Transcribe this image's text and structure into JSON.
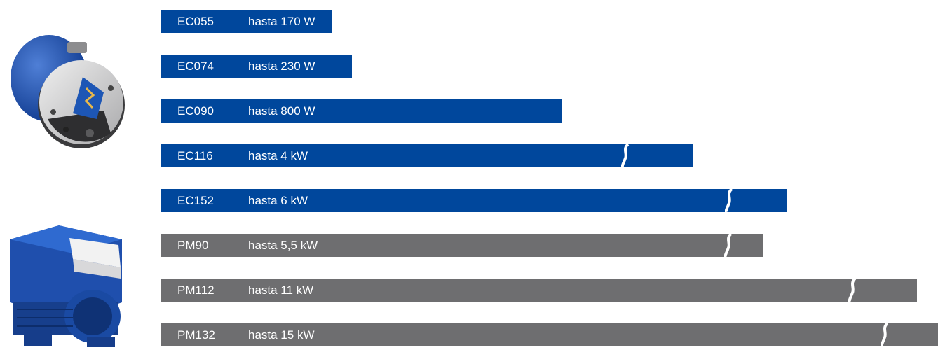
{
  "colors": {
    "ec": "#00479c",
    "pm": "#6e6e70",
    "background": "#ffffff"
  },
  "icons": {
    "ec_motor": "ec-motor-image",
    "pm_motor": "pm-motor-image"
  },
  "chart_data": {
    "type": "bar",
    "orientation": "horizontal",
    "title": "",
    "xlabel": "",
    "ylabel": "",
    "grid": false,
    "unit_note": "axis broken (S-shaped break marks) on EC116, EC152, PM90, PM112, PM132",
    "bars": [
      {
        "model": "EC055",
        "rating": "hasta 170 W",
        "value_w": 170,
        "family": "EC",
        "broken": false
      },
      {
        "model": "EC074",
        "rating": "hasta 230 W",
        "value_w": 230,
        "family": "EC",
        "broken": false
      },
      {
        "model": "EC090",
        "rating": "hasta 800 W",
        "value_w": 800,
        "family": "EC",
        "broken": false
      },
      {
        "model": "EC116",
        "rating": "hasta 4 kW",
        "value_w": 4000,
        "family": "EC",
        "broken": true
      },
      {
        "model": "EC152",
        "rating": "hasta 6 kW",
        "value_w": 6000,
        "family": "EC",
        "broken": true
      },
      {
        "model": "PM90",
        "rating": "hasta 5,5 kW",
        "value_w": 5500,
        "family": "PM",
        "broken": true
      },
      {
        "model": "PM112",
        "rating": "hasta 11 kW",
        "value_w": 11000,
        "family": "PM",
        "broken": true
      },
      {
        "model": "PM132",
        "rating": "hasta 15 kW",
        "value_w": 15000,
        "family": "PM",
        "broken": true
      }
    ]
  }
}
